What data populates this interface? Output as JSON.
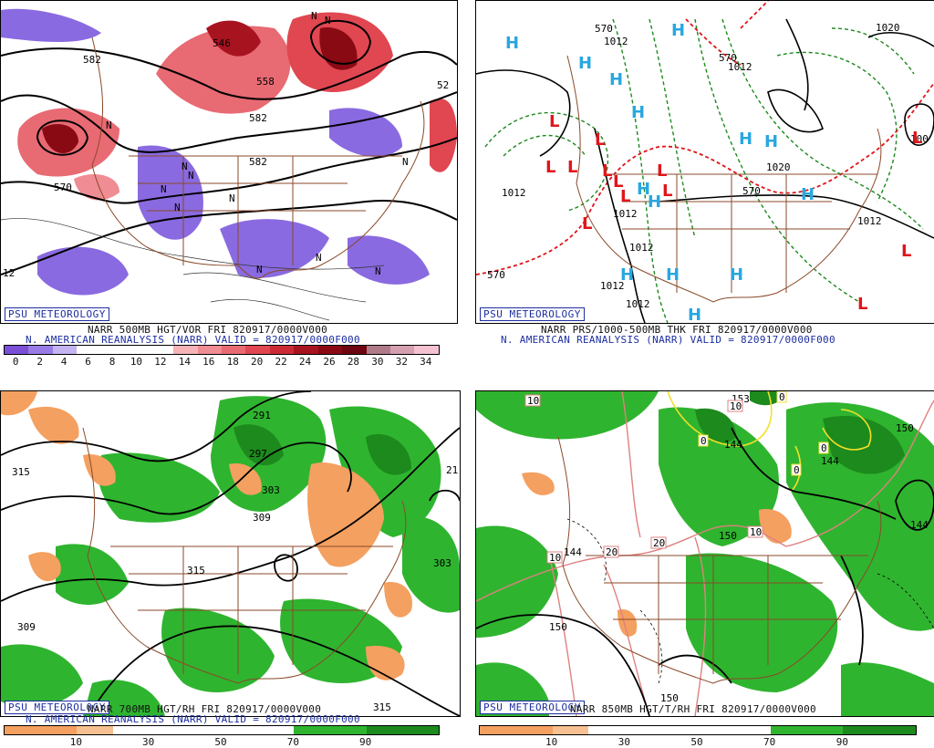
{
  "panels": [
    {
      "id": "top-left",
      "badge": "PSU METEOROLOGY",
      "caption_line1": "NARR 500MB HGT/VOR FRI 820917/0000V000",
      "caption_line2": "N. AMERICAN REANALYSIS (NARR) VALID = 820917/0000F000",
      "scale_ticks": [
        "0",
        "2",
        "4",
        "6",
        "8",
        "10",
        "12",
        "14",
        "16",
        "18",
        "20",
        "22",
        "24",
        "26",
        "28",
        "30",
        "32",
        "34"
      ],
      "scale_colors": [
        "#7b4fd6",
        "#9a7be6",
        "#c4b4f1",
        "#ffffff",
        "#ffffff",
        "#ffffff",
        "#ffffff",
        "#f6b3b8",
        "#f08c93",
        "#e86a73",
        "#e04750",
        "#cc2b35",
        "#a81320",
        "#8a0a14",
        "#6e0510",
        "#b07a88",
        "#d6a0b0",
        "#f4c2d0"
      ],
      "contour_labels": [
        "546",
        "558",
        "582",
        "570",
        "582",
        "582",
        "52",
        "12"
      ],
      "N_marks": [
        "N",
        "N",
        "N",
        "N",
        "N",
        "N",
        "N",
        "N",
        "N",
        "N",
        "N",
        "N"
      ]
    },
    {
      "id": "top-right",
      "badge": "PSU METEOROLOGY",
      "caption_line1": "NARR PRS/1000-500MB THK FRI 820917/0000V000",
      "caption_line2": "N. AMERICAN REANALYSIS (NARR) VALID = 820917/0000F000",
      "contour_labels": [
        "1012",
        "1012",
        "1012",
        "1012",
        "1012",
        "1012",
        "1012",
        "1020",
        "1012",
        "1020",
        "570",
        "570",
        "570",
        "570",
        "100"
      ],
      "highs": [
        "H",
        "H",
        "H",
        "H",
        "H",
        "H",
        "H",
        "H",
        "H",
        "H",
        "H",
        "H",
        "H",
        "H"
      ],
      "lows": [
        "L",
        "L",
        "L",
        "L",
        "L",
        "L",
        "L",
        "L",
        "L",
        "L",
        "L",
        "L",
        "L"
      ]
    },
    {
      "id": "bottom-left",
      "badge": "PSU METEOROLOGY",
      "caption_line1": "NARR 700MB HGT/RH FRI 820917/0000V000",
      "caption_line2": "N. AMERICAN REANALYSIS (NARR) VALID = 820917/0000F000",
      "scale_ticks": [
        "10",
        "30",
        "50",
        "70",
        "90"
      ],
      "contour_labels": [
        "315",
        "291",
        "297",
        "303",
        "309",
        "315",
        "309",
        "315",
        "21",
        "303"
      ]
    },
    {
      "id": "bottom-right",
      "badge": "PSU METEOROLOGY",
      "caption_line1": "NARR 850MB HGT/T/RH FRI 820917/0000V000",
      "scale_ticks": [
        "10",
        "30",
        "50",
        "70",
        "90"
      ],
      "contour_labels": [
        "144",
        "150",
        "144",
        "150",
        "150",
        "144",
        "150",
        "153",
        "144"
      ],
      "temp_labels": [
        "10",
        "10",
        "10",
        "20",
        "20",
        "10",
        "0",
        "0",
        "0",
        "0"
      ]
    }
  ],
  "colors": {
    "vort_pos": "#e04750",
    "vort_neg": "#8a6ae0",
    "rh_green": "#2fb42f",
    "rh_dark_green": "#1c8a1c",
    "rh_orange": "#f4a060",
    "high_blue": "#29a7e0",
    "low_red": "#e0151b",
    "borders": "#8a4a2a"
  }
}
